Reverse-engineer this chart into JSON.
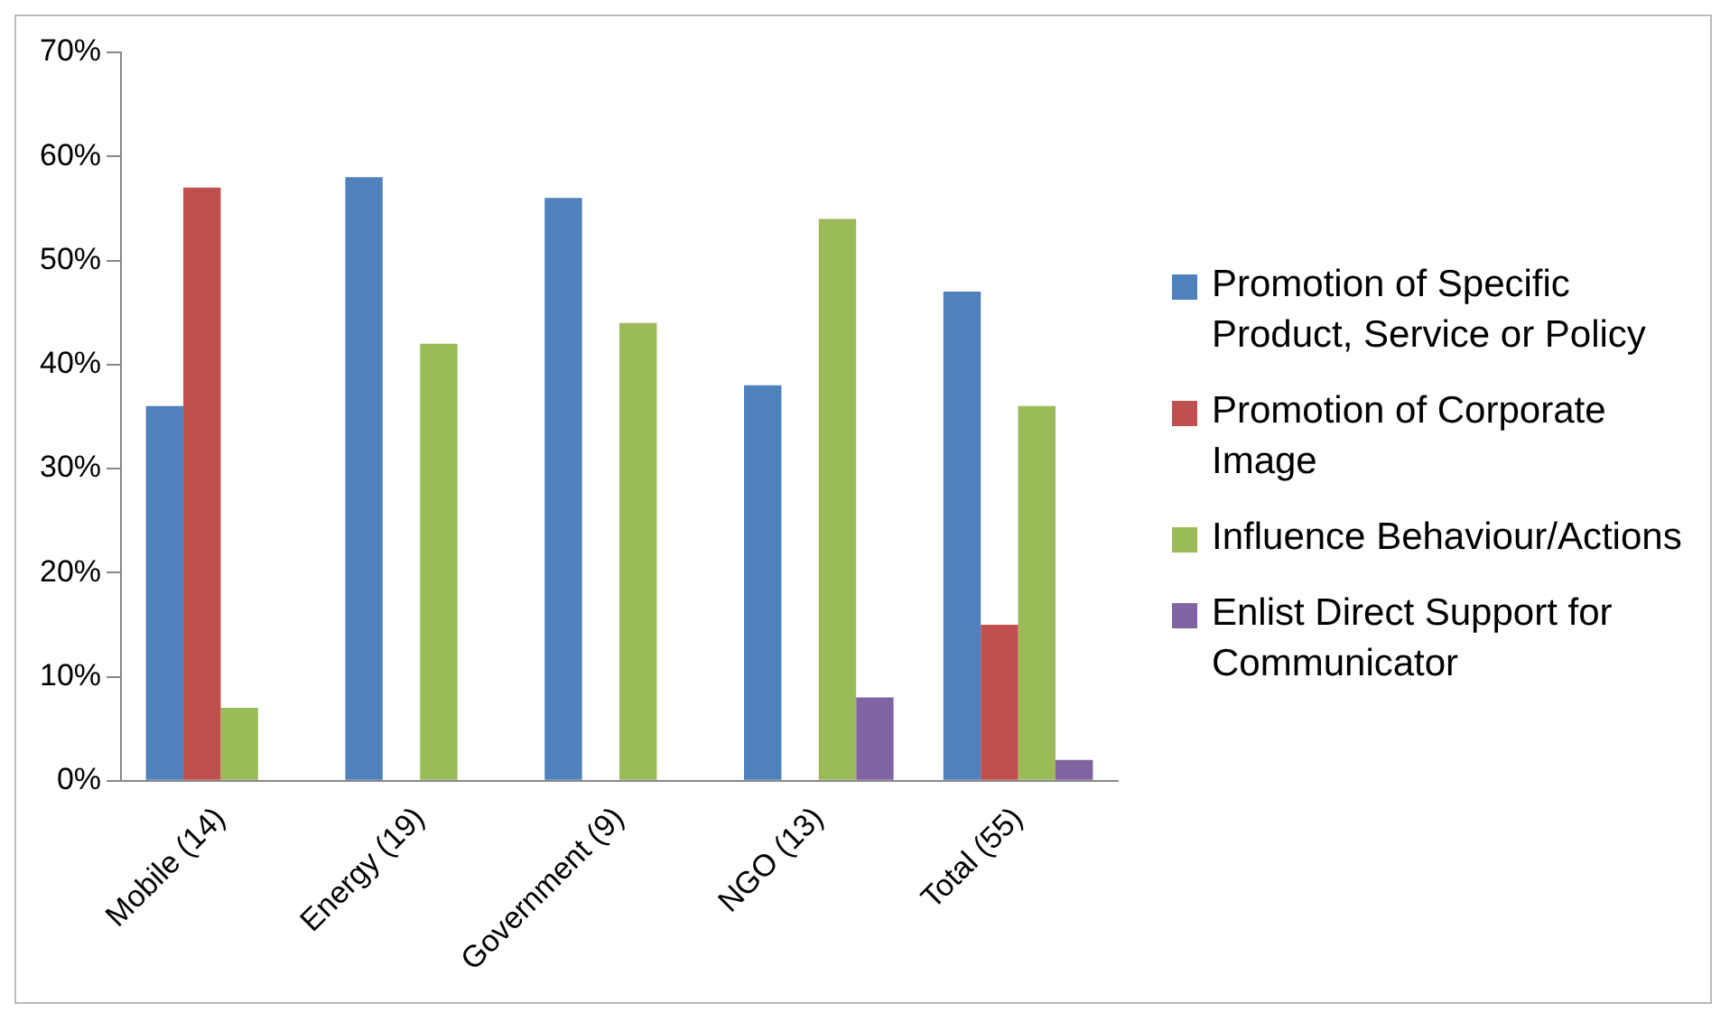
{
  "chart_data": {
    "type": "bar",
    "categories": [
      "Mobile (14)",
      "Energy (19)",
      "Government (9)",
      "NGO (13)",
      "Total (55)"
    ],
    "series": [
      {
        "name": "Promotion of Specific Product, Service or Policy",
        "color": "#4f81bd",
        "values": [
          36,
          58,
          56,
          38,
          47
        ]
      },
      {
        "name": "Promotion of Corporate Image",
        "color": "#c0504d",
        "values": [
          57,
          0,
          0,
          0,
          15
        ]
      },
      {
        "name": "Influence Behaviour/Actions",
        "color": "#9bbb59",
        "values": [
          7,
          42,
          44,
          54,
          36
        ]
      },
      {
        "name": "Enlist Direct Support for Communicator",
        "color": "#8064a2",
        "values": [
          0,
          0,
          0,
          8,
          2
        ]
      }
    ],
    "ylim": [
      0,
      70
    ],
    "yticks": [
      {
        "value": 0,
        "label": "0%"
      },
      {
        "value": 10,
        "label": "10%"
      },
      {
        "value": 20,
        "label": "20%"
      },
      {
        "value": 30,
        "label": "30%"
      },
      {
        "value": 40,
        "label": "40%"
      },
      {
        "value": 50,
        "label": "50%"
      },
      {
        "value": 60,
        "label": "60%"
      },
      {
        "value": 70,
        "label": "70%"
      }
    ],
    "grid": false,
    "legend": "right"
  }
}
